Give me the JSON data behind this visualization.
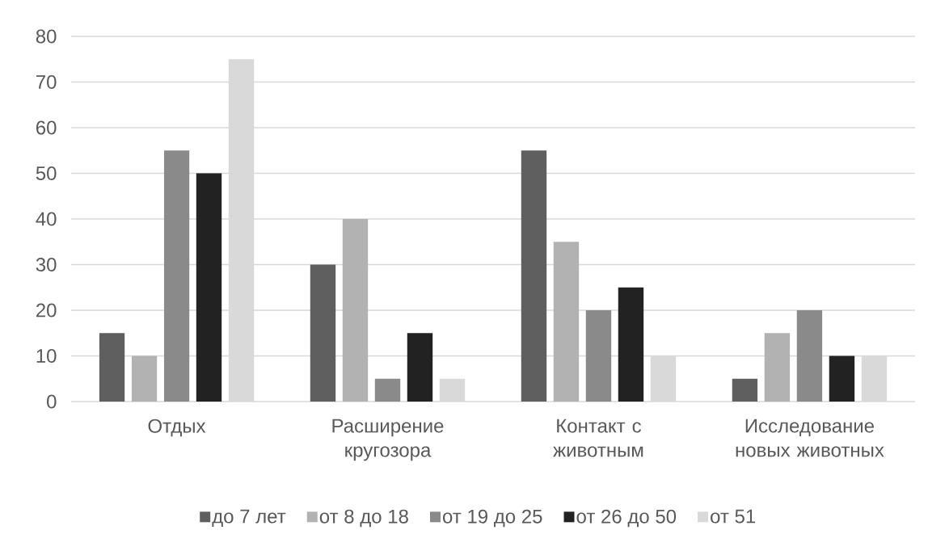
{
  "chart_data": {
    "type": "bar",
    "categories": [
      "Отдых",
      "Расширение кругозора",
      "Контакт с животным",
      "Исследование новых животных"
    ],
    "series": [
      {
        "name": "до 7 лет",
        "color": "#5f5f5f",
        "values": [
          15,
          30,
          55,
          5
        ]
      },
      {
        "name": "от 8 до 18",
        "color": "#b2b2b2",
        "values": [
          10,
          40,
          35,
          15
        ]
      },
      {
        "name": "от 19 до 25",
        "color": "#8a8a8a",
        "values": [
          55,
          5,
          20,
          20
        ]
      },
      {
        "name": "от 26 до 50",
        "color": "#222222",
        "values": [
          50,
          15,
          25,
          10
        ]
      },
      {
        "name": "от 51",
        "color": "#d9d9d9",
        "values": [
          75,
          5,
          10,
          10
        ]
      }
    ],
    "ylim": [
      0,
      80
    ],
    "yticks": [
      0,
      10,
      20,
      30,
      40,
      50,
      60,
      70,
      80
    ],
    "grid": "y",
    "legend": "bottom"
  }
}
